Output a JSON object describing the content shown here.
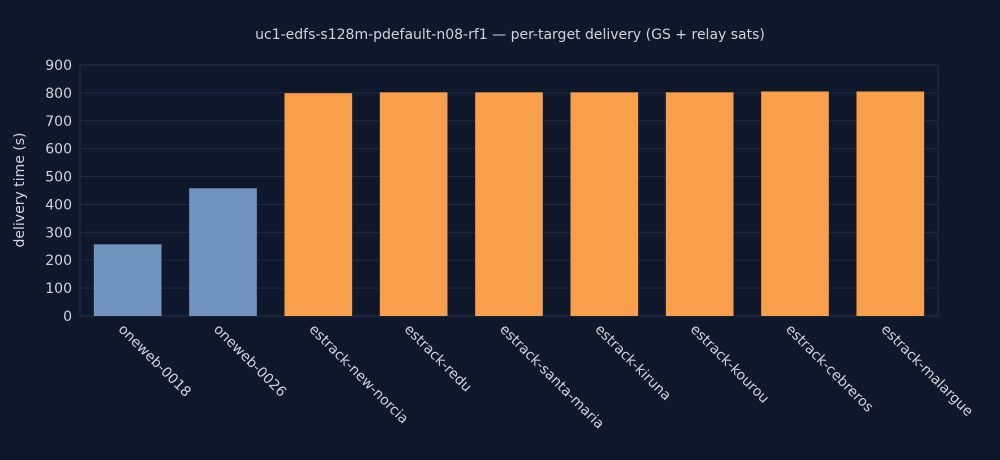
{
  "chart_data": {
    "type": "bar",
    "title": "uc1-edfs-s128m-pdefault-n08-rf1 — per-target delivery (GS + relay sats)",
    "ylabel": "delivery time (s)",
    "xlabel": "",
    "ylim": [
      0,
      900
    ],
    "yticks": [
      0,
      100,
      200,
      300,
      400,
      500,
      600,
      700,
      800,
      900
    ],
    "grid": true,
    "legend": "none",
    "categories": [
      "oneweb-0018",
      "oneweb-0026",
      "estrack-new-norcia",
      "estrack-redu",
      "estrack-santa-maria",
      "estrack-kiruna",
      "estrack-kourou",
      "estrack-cebreros",
      "estrack-malargue"
    ],
    "values": [
      257,
      458,
      799,
      802,
      802,
      802,
      802,
      805,
      805
    ],
    "colors": [
      "#7094bd",
      "#7094bd",
      "#f79f4a",
      "#f79f4a",
      "#f79f4a",
      "#f79f4a",
      "#f79f4a",
      "#f79f4a",
      "#f79f4a"
    ]
  }
}
